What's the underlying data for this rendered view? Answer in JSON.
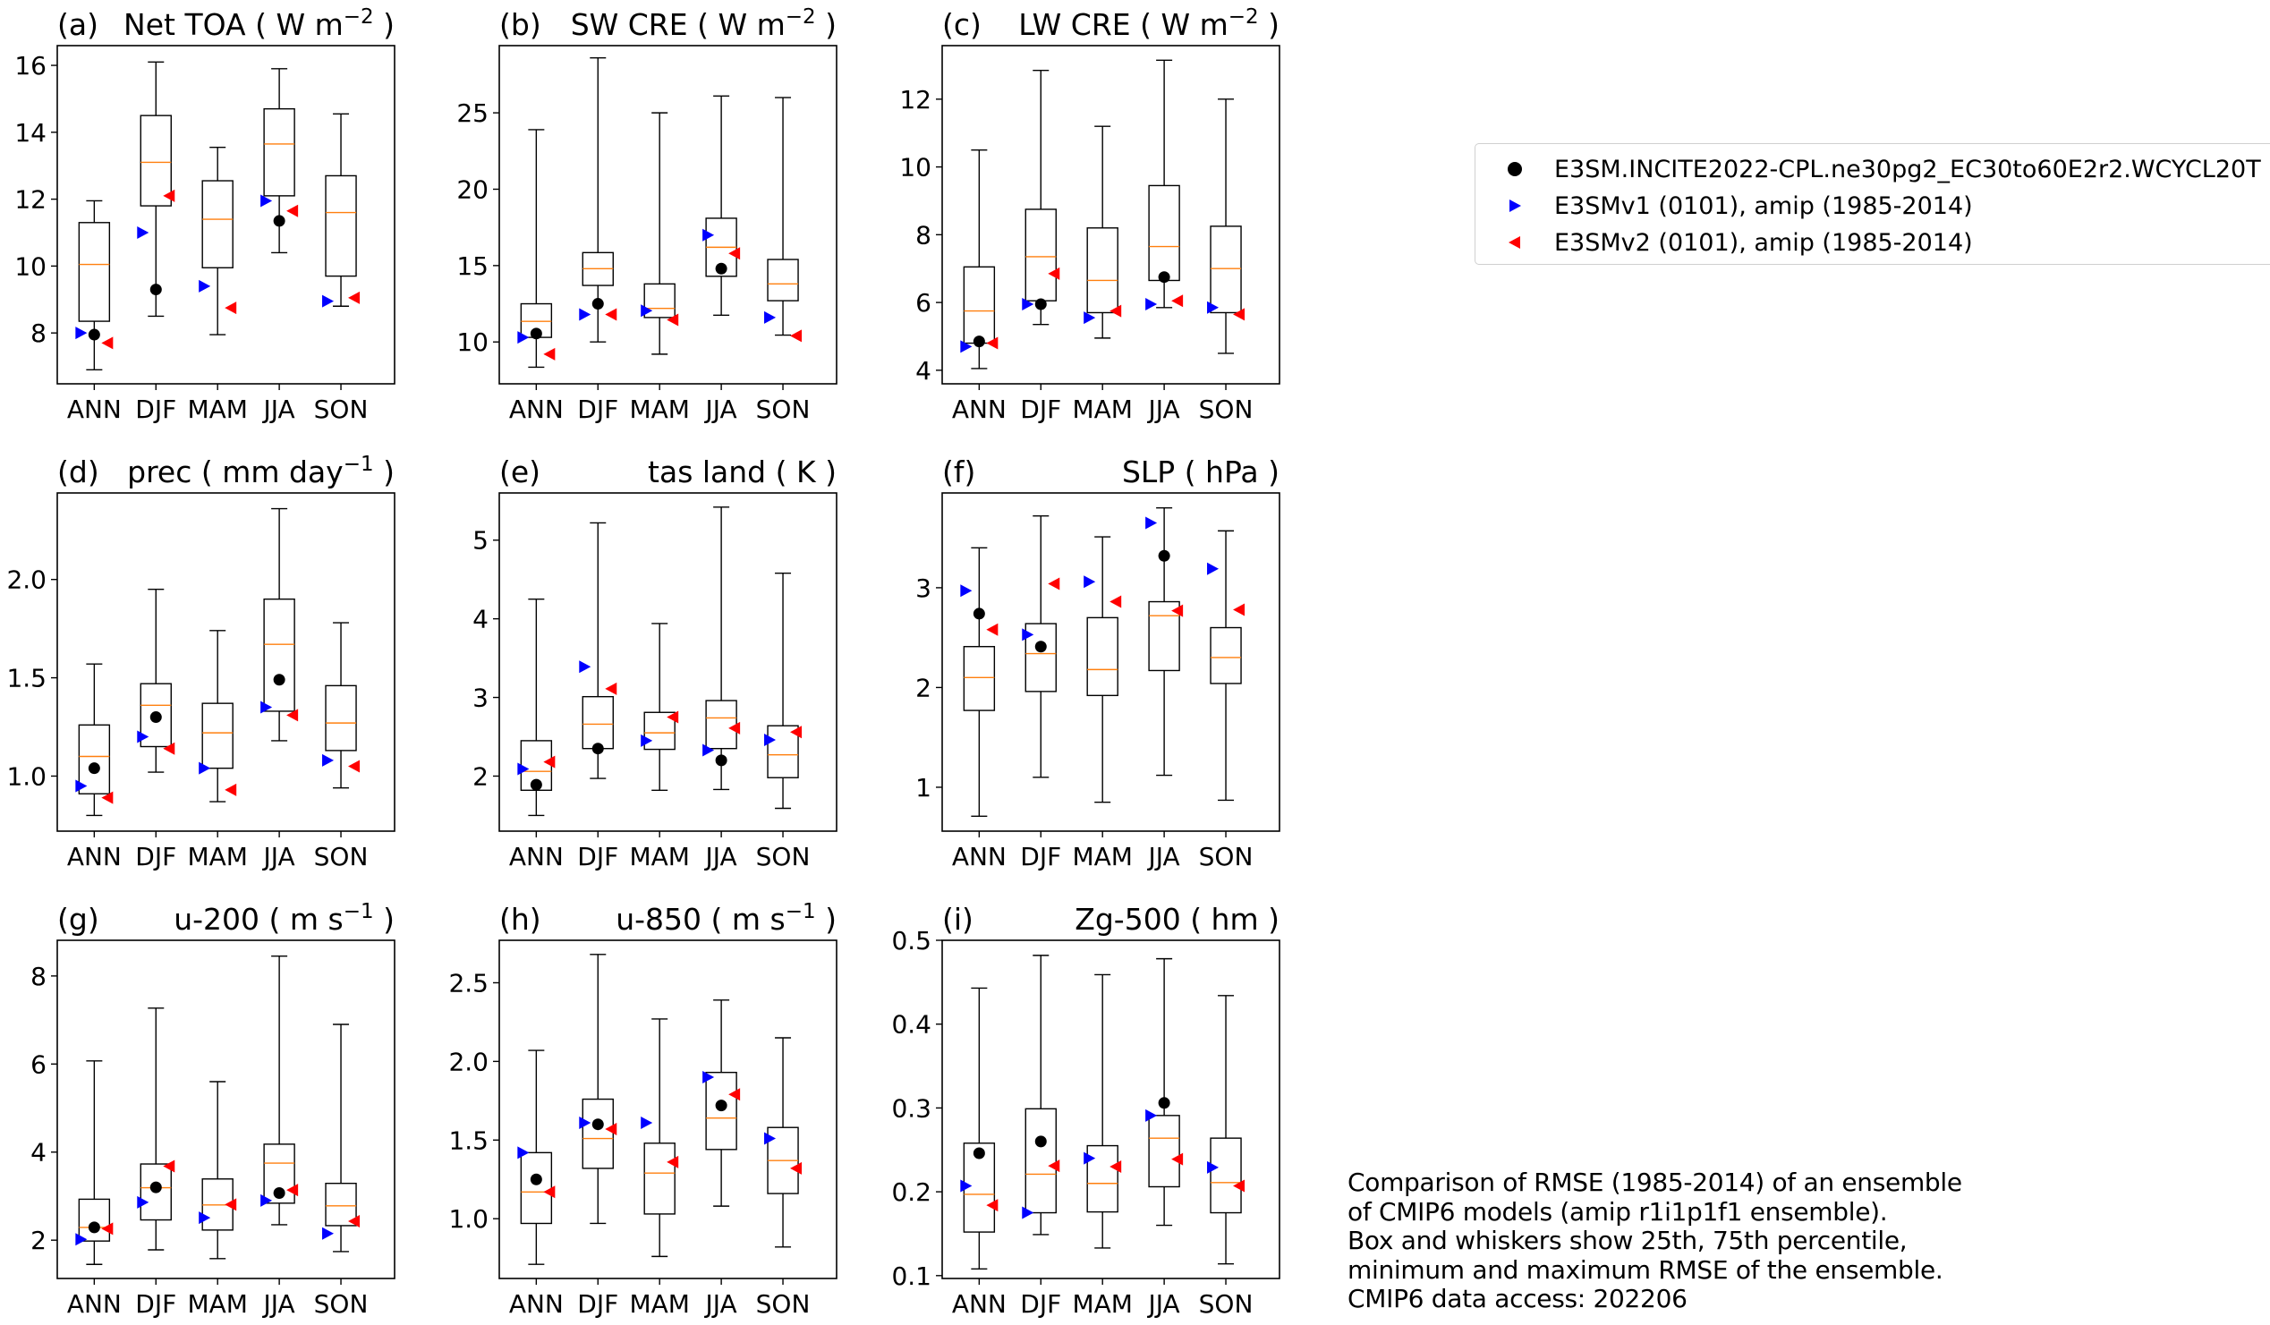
{
  "figure": {
    "legend": [
      {
        "label": "E3SM.INCITE2022-CPL.ne30pg2_EC30to60E2r2.WCYCL20T",
        "marker": "circle",
        "color": "#000000"
      },
      {
        "label": "E3SMv1 (0101), amip (1985-2014)",
        "marker": "triangle-right",
        "color": "#0000ff"
      },
      {
        "label": "E3SMv2 (0101), amip (1985-2014)",
        "marker": "triangle-left",
        "color": "#ff0000"
      }
    ],
    "caption": [
      "Comparison of RMSE (1985-2014) of an ensemble",
      "of CMIP6 models (amip r1i1p1f1 ensemble).",
      "Box and whiskers show 25th, 75th percentile,",
      "minimum and maximum RMSE of the ensemble.",
      "CMIP6 data access: 202206"
    ],
    "colors": {
      "median": "#ff7f0e",
      "box": "#000000",
      "test": "#000000",
      "v1": "#0000ff",
      "v2": "#ff0000"
    }
  },
  "chart_data": [
    {
      "type": "box",
      "panel": "(a)",
      "title": "Net TOA",
      "units": "W m",
      "units_sup": "−2",
      "title_align": "left",
      "categories": [
        "ANN",
        "DJF",
        "MAM",
        "JJA",
        "SON"
      ],
      "ylim": [
        6.48,
        16.59
      ],
      "yticks": [
        8,
        10,
        12,
        14,
        16
      ],
      "ytick_labels": [
        "8",
        "10",
        "12",
        "14",
        "16"
      ],
      "boxes": [
        {
          "min": 6.9,
          "q1": 8.35,
          "median": 10.05,
          "q3": 11.3,
          "max": 11.95
        },
        {
          "min": 8.5,
          "q1": 11.8,
          "median": 13.1,
          "q3": 14.5,
          "max": 16.1
        },
        {
          "min": 7.95,
          "q1": 9.95,
          "median": 11.4,
          "q3": 12.55,
          "max": 13.55
        },
        {
          "min": 10.4,
          "q1": 12.1,
          "median": 13.65,
          "q3": 14.7,
          "max": 15.9
        },
        {
          "min": 8.8,
          "q1": 9.7,
          "median": 11.6,
          "q3": 12.7,
          "max": 14.55
        }
      ],
      "test": [
        7.95,
        9.3,
        null,
        11.35,
        null
      ],
      "v1": [
        8.0,
        11.0,
        9.4,
        11.95,
        8.95
      ],
      "v2": [
        7.7,
        12.1,
        8.75,
        11.65,
        9.05
      ]
    },
    {
      "type": "box",
      "panel": "(b)",
      "title": "SW CRE",
      "units": "W m",
      "units_sup": "−2",
      "title_align": "left",
      "categories": [
        "ANN",
        "DJF",
        "MAM",
        "JJA",
        "SON"
      ],
      "ylim": [
        7.26,
        29.4
      ],
      "yticks": [
        10,
        15,
        20,
        25
      ],
      "ytick_labels": [
        "10",
        "15",
        "20",
        "25"
      ],
      "boxes": [
        {
          "min": 8.35,
          "q1": 10.3,
          "median": 11.35,
          "q3": 12.5,
          "max": 23.9
        },
        {
          "min": 10.0,
          "q1": 13.7,
          "median": 14.8,
          "q3": 15.85,
          "max": 28.6
        },
        {
          "min": 9.2,
          "q1": 11.6,
          "median": 12.2,
          "q3": 13.8,
          "max": 25.0
        },
        {
          "min": 11.75,
          "q1": 14.3,
          "median": 16.2,
          "q3": 18.1,
          "max": 26.1
        },
        {
          "min": 10.45,
          "q1": 12.7,
          "median": 13.8,
          "q3": 15.4,
          "max": 26.0
        }
      ],
      "test": [
        10.55,
        12.5,
        null,
        14.8,
        null
      ],
      "v1": [
        10.3,
        11.8,
        12.05,
        17.0,
        11.6
      ],
      "v2": [
        9.2,
        11.8,
        11.45,
        15.8,
        10.4
      ]
    },
    {
      "type": "box",
      "panel": "(c)",
      "title": "LW CRE",
      "units": "W m",
      "units_sup": "−2",
      "title_align": "left",
      "categories": [
        "ANN",
        "DJF",
        "MAM",
        "JJA",
        "SON"
      ],
      "ylim": [
        3.6,
        13.58
      ],
      "yticks": [
        4,
        6,
        8,
        10,
        12
      ],
      "ytick_labels": [
        "4",
        "6",
        "8",
        "10",
        "12"
      ],
      "boxes": [
        {
          "min": 4.05,
          "q1": 4.8,
          "median": 5.75,
          "q3": 7.05,
          "max": 10.5
        },
        {
          "min": 5.35,
          "q1": 6.05,
          "median": 7.35,
          "q3": 8.75,
          "max": 12.85
        },
        {
          "min": 4.95,
          "q1": 5.7,
          "median": 6.65,
          "q3": 8.2,
          "max": 11.2
        },
        {
          "min": 5.85,
          "q1": 6.65,
          "median": 7.65,
          "q3": 9.45,
          "max": 13.15
        },
        {
          "min": 4.5,
          "q1": 5.7,
          "median": 7.0,
          "q3": 8.25,
          "max": 12.0
        }
      ],
      "test": [
        4.85,
        5.95,
        null,
        6.75,
        null
      ],
      "v1": [
        4.7,
        5.95,
        5.55,
        5.95,
        5.85
      ],
      "v2": [
        4.8,
        6.85,
        5.75,
        6.05,
        5.65
      ]
    },
    {
      "type": "box",
      "panel": "(d)",
      "title": "prec",
      "units": "mm day",
      "units_sup": "−1",
      "title_align": "left",
      "categories": [
        "ANN",
        "DJF",
        "MAM",
        "JJA",
        "SON"
      ],
      "ylim": [
        0.72,
        2.44
      ],
      "yticks": [
        1.0,
        1.5,
        2.0
      ],
      "ytick_labels": [
        "1.0",
        "1.5",
        "2.0"
      ],
      "boxes": [
        {
          "min": 0.8,
          "q1": 0.91,
          "median": 1.1,
          "q3": 1.26,
          "max": 1.57
        },
        {
          "min": 1.02,
          "q1": 1.15,
          "median": 1.36,
          "q3": 1.47,
          "max": 1.95
        },
        {
          "min": 0.87,
          "q1": 1.04,
          "median": 1.22,
          "q3": 1.37,
          "max": 1.74
        },
        {
          "min": 1.18,
          "q1": 1.33,
          "median": 1.67,
          "q3": 1.9,
          "max": 2.36
        },
        {
          "min": 0.94,
          "q1": 1.13,
          "median": 1.27,
          "q3": 1.46,
          "max": 1.78
        }
      ],
      "test": [
        1.04,
        1.3,
        null,
        1.49,
        null
      ],
      "v1": [
        0.95,
        1.2,
        1.04,
        1.35,
        1.08
      ],
      "v2": [
        0.89,
        1.14,
        0.93,
        1.31,
        1.05
      ]
    },
    {
      "type": "box",
      "panel": "(e)",
      "title": "tas land",
      "units": "K",
      "units_sup": "",
      "title_align": "right",
      "categories": [
        "ANN",
        "DJF",
        "MAM",
        "JJA",
        "SON"
      ],
      "ylim": [
        1.3,
        5.6
      ],
      "yticks": [
        2,
        3,
        4,
        5
      ],
      "ytick_labels": [
        "2",
        "3",
        "4",
        "5"
      ],
      "boxes": [
        {
          "min": 1.5,
          "q1": 1.82,
          "median": 2.06,
          "q3": 2.45,
          "max": 4.25
        },
        {
          "min": 1.97,
          "q1": 2.35,
          "median": 2.66,
          "q3": 3.01,
          "max": 5.22
        },
        {
          "min": 1.82,
          "q1": 2.34,
          "median": 2.55,
          "q3": 2.81,
          "max": 3.94
        },
        {
          "min": 1.83,
          "q1": 2.35,
          "median": 2.74,
          "q3": 2.96,
          "max": 5.42
        },
        {
          "min": 1.59,
          "q1": 1.98,
          "median": 2.27,
          "q3": 2.64,
          "max": 4.58
        }
      ],
      "test": [
        1.89,
        2.35,
        null,
        2.2,
        null
      ],
      "v1": [
        2.09,
        3.39,
        2.45,
        2.33,
        2.46
      ],
      "v2": [
        2.18,
        3.11,
        2.75,
        2.61,
        2.56
      ]
    },
    {
      "type": "box",
      "panel": "(f)",
      "title": "SLP",
      "units": "hPa",
      "units_sup": "",
      "title_align": "right",
      "categories": [
        "ANN",
        "DJF",
        "MAM",
        "JJA",
        "SON"
      ],
      "ylim": [
        0.56,
        3.95
      ],
      "yticks": [
        1,
        2,
        3
      ],
      "ytick_labels": [
        "1",
        "2",
        "3"
      ],
      "boxes": [
        {
          "min": 0.71,
          "q1": 1.77,
          "median": 2.1,
          "q3": 2.41,
          "max": 3.4
        },
        {
          "min": 1.1,
          "q1": 1.96,
          "median": 2.34,
          "q3": 2.64,
          "max": 3.72
        },
        {
          "min": 0.85,
          "q1": 1.92,
          "median": 2.18,
          "q3": 2.7,
          "max": 3.51
        },
        {
          "min": 1.12,
          "q1": 2.17,
          "median": 2.72,
          "q3": 2.86,
          "max": 3.8
        },
        {
          "min": 0.87,
          "q1": 2.04,
          "median": 2.3,
          "q3": 2.6,
          "max": 3.57
        }
      ],
      "test": [
        2.74,
        2.41,
        null,
        3.32,
        null
      ],
      "v1": [
        2.97,
        2.53,
        3.06,
        3.65,
        3.19
      ],
      "v2": [
        2.58,
        3.04,
        2.86,
        2.77,
        2.78
      ]
    },
    {
      "type": "box",
      "panel": "(g)",
      "title": "u-200",
      "units": "m s",
      "units_sup": "−1",
      "title_align": "right",
      "categories": [
        "ANN",
        "DJF",
        "MAM",
        "JJA",
        "SON"
      ],
      "ylim": [
        1.13,
        8.81
      ],
      "yticks": [
        2,
        4,
        6,
        8
      ],
      "ytick_labels": [
        "2",
        "4",
        "6",
        "8"
      ],
      "boxes": [
        {
          "min": 1.45,
          "q1": 1.98,
          "median": 2.29,
          "q3": 2.93,
          "max": 6.07
        },
        {
          "min": 1.78,
          "q1": 2.46,
          "median": 3.19,
          "q3": 3.73,
          "max": 7.27
        },
        {
          "min": 1.58,
          "q1": 2.23,
          "median": 2.8,
          "q3": 3.39,
          "max": 5.6
        },
        {
          "min": 2.35,
          "q1": 2.84,
          "median": 3.75,
          "q3": 4.18,
          "max": 8.45
        },
        {
          "min": 1.74,
          "q1": 2.33,
          "median": 2.78,
          "q3": 3.29,
          "max": 6.9
        }
      ],
      "test": [
        2.29,
        3.2,
        null,
        3.07,
        null
      ],
      "v1": [
        2.02,
        2.86,
        2.51,
        2.9,
        2.15
      ],
      "v2": [
        2.26,
        3.68,
        2.81,
        3.14,
        2.43
      ]
    },
    {
      "type": "box",
      "panel": "(h)",
      "title": "u-850",
      "units": "m s",
      "units_sup": "−1",
      "title_align": "right",
      "categories": [
        "ANN",
        "DJF",
        "MAM",
        "JJA",
        "SON"
      ],
      "ylim": [
        0.62,
        2.77
      ],
      "yticks": [
        1.0,
        1.5,
        2.0,
        2.5
      ],
      "ytick_labels": [
        "1.0",
        "1.5",
        "2.0",
        "2.5"
      ],
      "boxes": [
        {
          "min": 0.71,
          "q1": 0.97,
          "median": 1.17,
          "q3": 1.42,
          "max": 2.07
        },
        {
          "min": 0.97,
          "q1": 1.32,
          "median": 1.51,
          "q3": 1.76,
          "max": 2.68
        },
        {
          "min": 0.76,
          "q1": 1.03,
          "median": 1.29,
          "q3": 1.48,
          "max": 2.27
        },
        {
          "min": 1.08,
          "q1": 1.44,
          "median": 1.64,
          "q3": 1.93,
          "max": 2.39
        },
        {
          "min": 0.82,
          "q1": 1.16,
          "median": 1.37,
          "q3": 1.58,
          "max": 2.15
        }
      ],
      "test": [
        1.25,
        1.6,
        null,
        1.72,
        null
      ],
      "v1": [
        1.42,
        1.61,
        1.61,
        1.9,
        1.51
      ],
      "v2": [
        1.17,
        1.57,
        1.36,
        1.79,
        1.32
      ]
    },
    {
      "type": "box",
      "panel": "(i)",
      "title": "Zg-500",
      "units": "hm",
      "units_sup": "",
      "title_align": "right",
      "categories": [
        "ANN",
        "DJF",
        "MAM",
        "JJA",
        "SON"
      ],
      "ylim": [
        0.0966,
        0.5
      ],
      "yticks": [
        0.1,
        0.2,
        0.3,
        0.4,
        0.5
      ],
      "ytick_labels": [
        "0.1",
        "0.2",
        "0.3",
        "0.4",
        "0.5"
      ],
      "boxes": [
        {
          "min": 0.108,
          "q1": 0.152,
          "median": 0.197,
          "q3": 0.258,
          "max": 0.443
        },
        {
          "min": 0.149,
          "q1": 0.175,
          "median": 0.221,
          "q3": 0.299,
          "max": 0.482
        },
        {
          "min": 0.133,
          "q1": 0.176,
          "median": 0.21,
          "q3": 0.255,
          "max": 0.459
        },
        {
          "min": 0.16,
          "q1": 0.206,
          "median": 0.264,
          "q3": 0.291,
          "max": 0.478
        },
        {
          "min": 0.114,
          "q1": 0.175,
          "median": 0.211,
          "q3": 0.264,
          "max": 0.434
        }
      ],
      "test": [
        0.246,
        0.26,
        null,
        0.306,
        null
      ],
      "v1": [
        0.207,
        0.175,
        0.24,
        0.291,
        0.229
      ],
      "v2": [
        0.184,
        0.231,
        0.23,
        0.239,
        0.207
      ]
    }
  ]
}
